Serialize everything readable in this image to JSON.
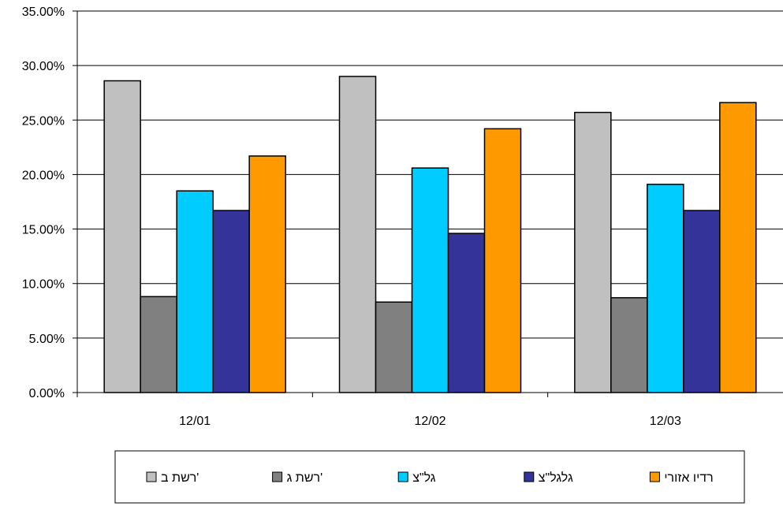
{
  "chart_data": {
    "type": "bar",
    "categories": [
      "12/01",
      "12/02",
      "12/03"
    ],
    "series": [
      {
        "name": "רשת ב'",
        "color": "#c0c0c0",
        "values": [
          28.6,
          29.0,
          25.7
        ]
      },
      {
        "name": "רשת ג'",
        "color": "#808080",
        "values": [
          8.8,
          8.3,
          8.7
        ]
      },
      {
        "name": "גל\"צ",
        "color": "#00ccff",
        "values": [
          18.5,
          20.6,
          19.1
        ]
      },
      {
        "name": "גלגל\"צ",
        "color": "#333399",
        "values": [
          16.7,
          14.6,
          16.7
        ]
      },
      {
        "name": "רדיו אזורי",
        "color": "#ff9900",
        "values": [
          21.7,
          24.2,
          26.6
        ]
      }
    ],
    "ylim": [
      0,
      35
    ],
    "yticks": [
      0,
      5,
      10,
      15,
      20,
      25,
      30,
      35
    ],
    "ytick_labels": [
      "0.00%",
      "5.00%",
      "10.00%",
      "15.00%",
      "20.00%",
      "25.00%",
      "30.00%",
      "35.00%"
    ],
    "grid": true,
    "legend_position": "bottom",
    "title": "",
    "xlabel": "",
    "ylabel": ""
  }
}
